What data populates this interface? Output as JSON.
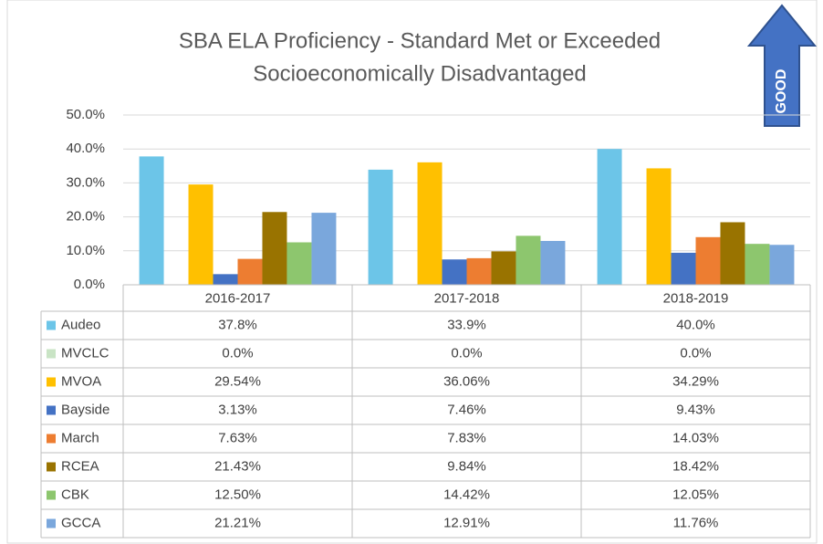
{
  "chart_data": {
    "type": "bar",
    "title": "SBA ELA Proficiency - Standard Met or Exceeded",
    "subtitle": "Socioeconomically Disadvantaged",
    "annotation": "GOOD",
    "categories": [
      "2016-2017",
      "2017-2018",
      "2018-2019"
    ],
    "ylim": [
      0,
      50
    ],
    "yticks": [
      {
        "value": 0,
        "label": "0.0%"
      },
      {
        "value": 10,
        "label": "10.0%"
      },
      {
        "value": 20,
        "label": "20.0%"
      },
      {
        "value": 30,
        "label": "30.0%"
      },
      {
        "value": 40,
        "label": "40.0%"
      },
      {
        "value": 50,
        "label": "50.0%"
      }
    ],
    "grid": true,
    "series": [
      {
        "name": "Audeo",
        "color": "#6cc5e8",
        "values": [
          37.8,
          33.9,
          40.0
        ],
        "value_labels": [
          "37.8%",
          "33.9%",
          "40.0%"
        ]
      },
      {
        "name": "MVCLC",
        "color": "#c9e4c5",
        "values": [
          0.0,
          0.0,
          0.0
        ],
        "value_labels": [
          "0.0%",
          "0.0%",
          "0.0%"
        ]
      },
      {
        "name": "MVOA",
        "color": "#ffc000",
        "values": [
          29.54,
          36.06,
          34.29
        ],
        "value_labels": [
          "29.54%",
          "36.06%",
          "34.29%"
        ]
      },
      {
        "name": "Bayside",
        "color": "#4472c4",
        "values": [
          3.13,
          7.46,
          9.43
        ],
        "value_labels": [
          "3.13%",
          "7.46%",
          "9.43%"
        ]
      },
      {
        "name": "March",
        "color": "#ed7d31",
        "values": [
          7.63,
          7.83,
          14.03
        ],
        "value_labels": [
          "7.63%",
          "7.83%",
          "14.03%"
        ]
      },
      {
        "name": "RCEA",
        "color": "#997300",
        "values": [
          21.43,
          9.84,
          18.42
        ],
        "value_labels": [
          "21.43%",
          "9.84%",
          "18.42%"
        ]
      },
      {
        "name": "CBK",
        "color": "#8dc66e",
        "values": [
          12.5,
          14.42,
          12.05
        ],
        "value_labels": [
          "12.50%",
          "14.42%",
          "12.05%"
        ]
      },
      {
        "name": "GCCA",
        "color": "#7aa7dc",
        "values": [
          21.21,
          12.91,
          11.76
        ],
        "value_labels": [
          "21.21%",
          "12.91%",
          "11.76%"
        ]
      }
    ]
  }
}
